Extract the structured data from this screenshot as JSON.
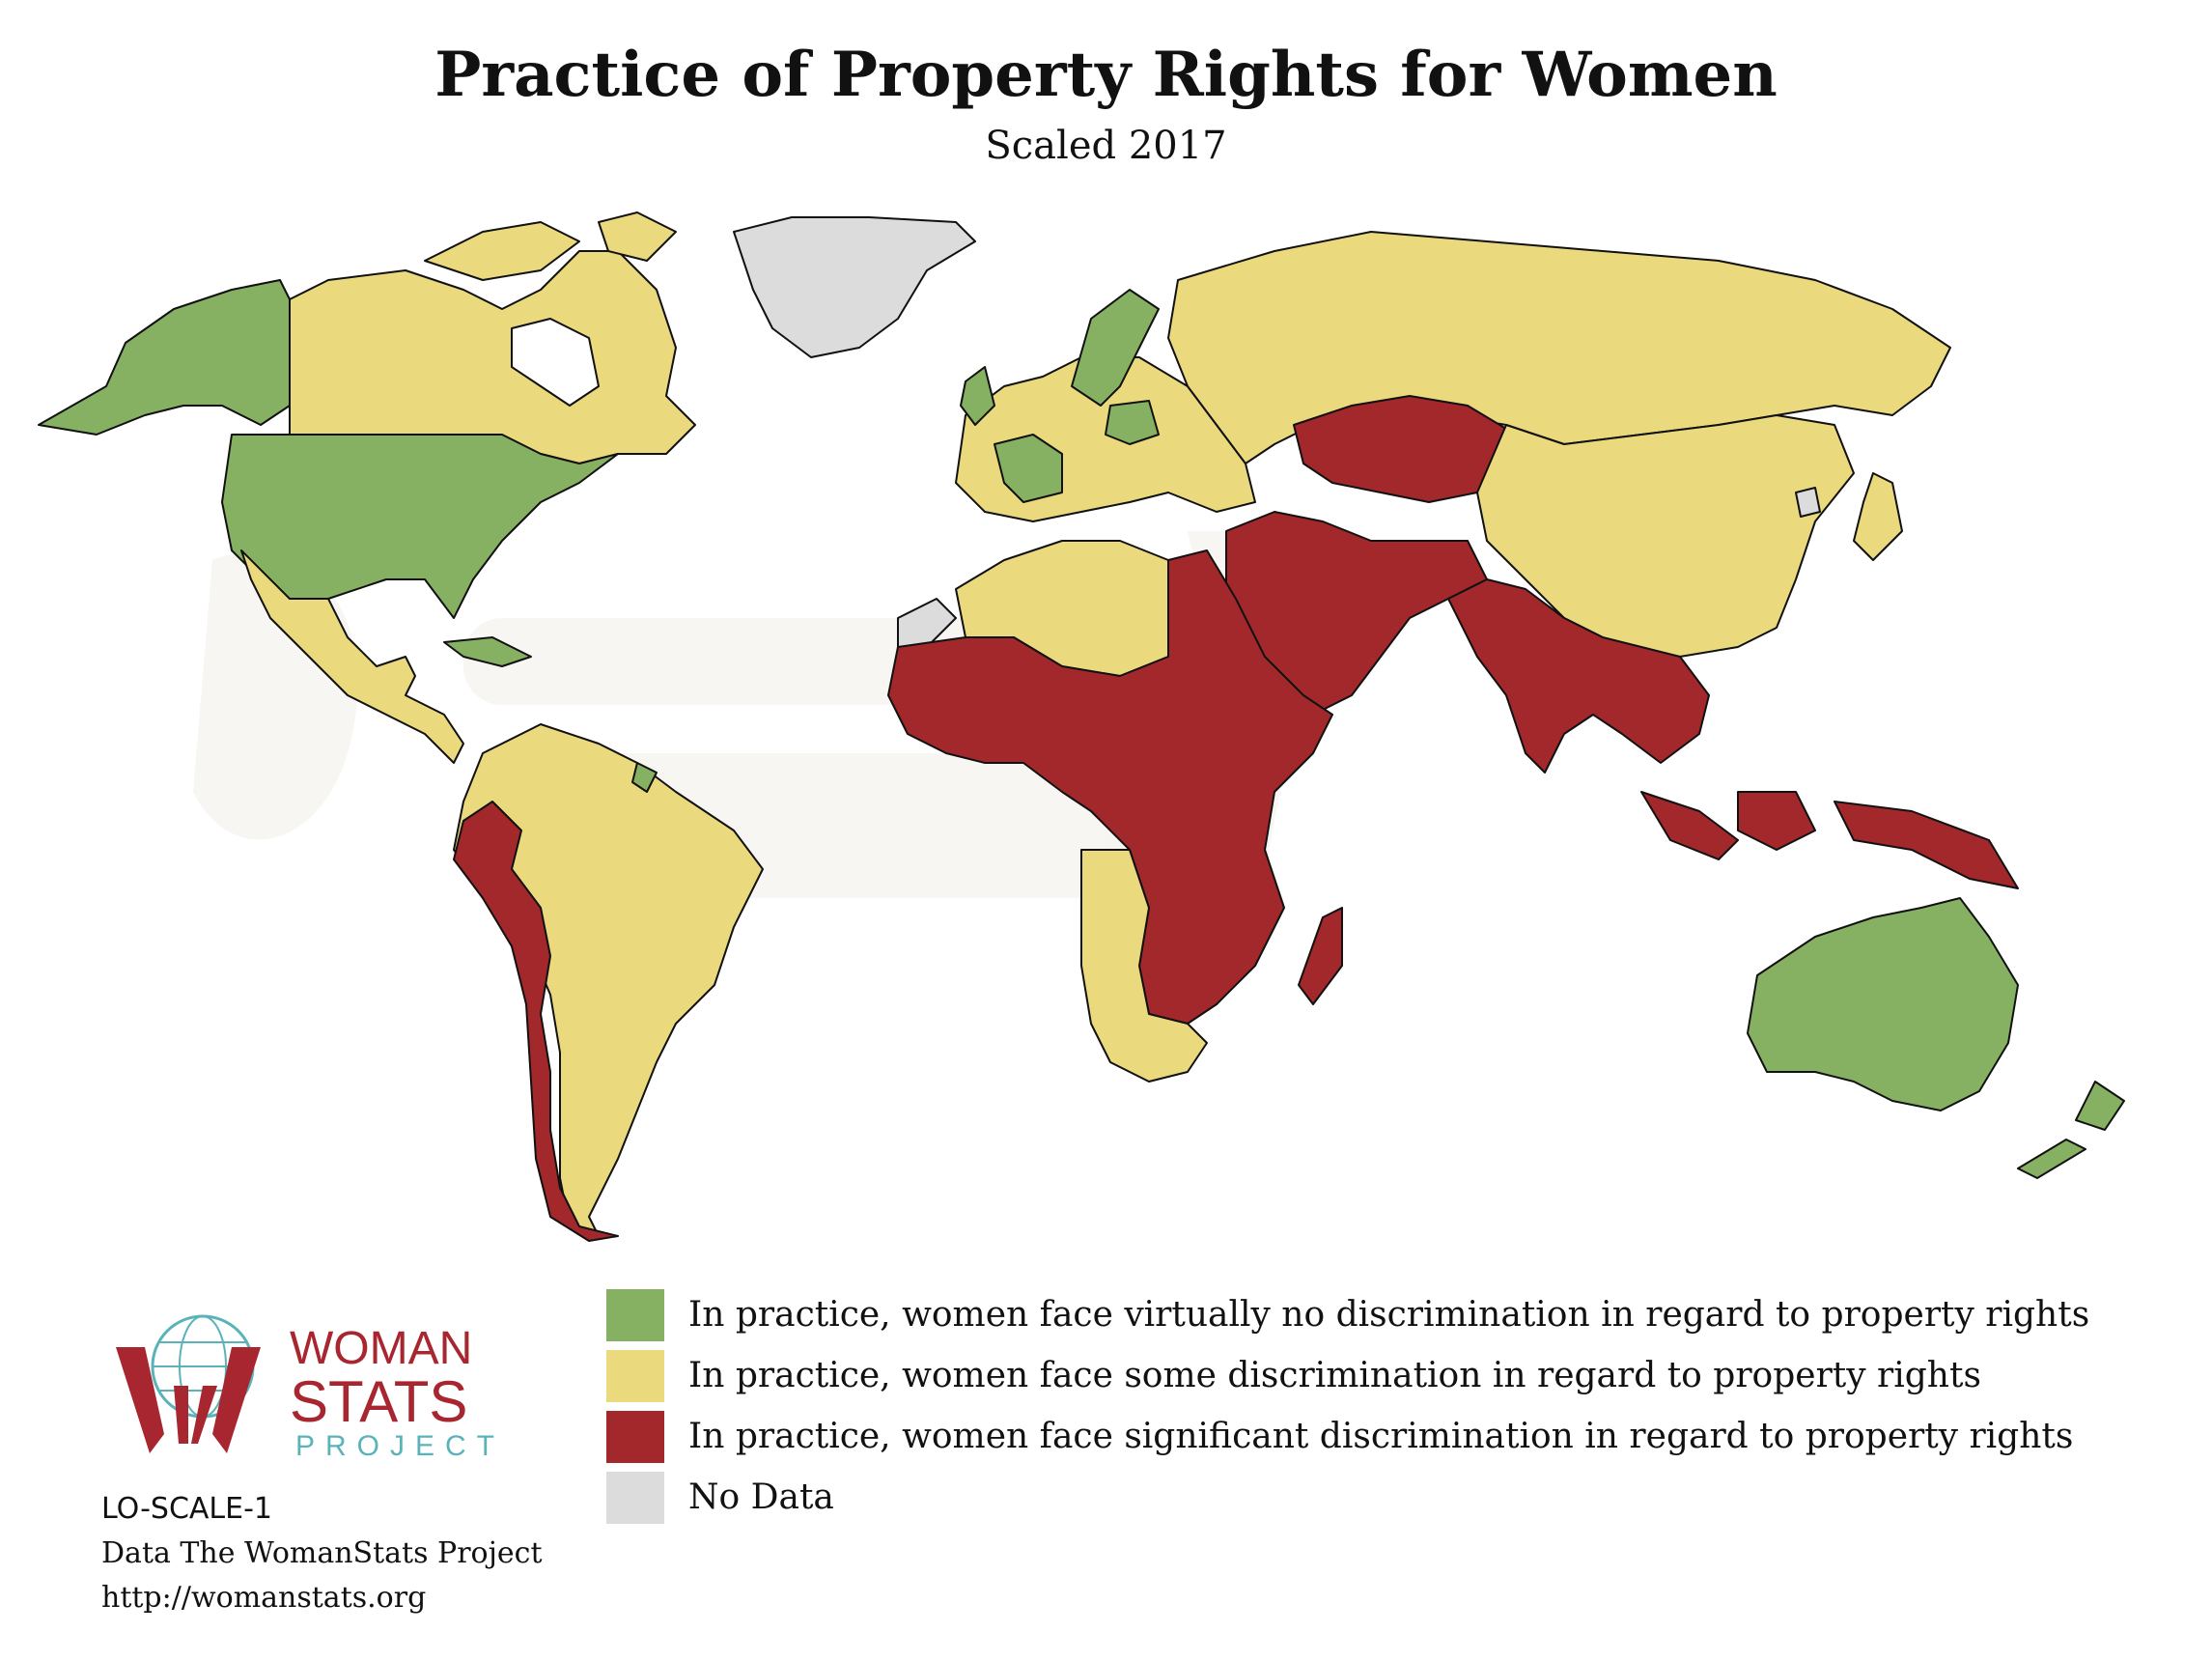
{
  "header": {
    "title": "Practice of Property Rights for Women",
    "subtitle": "Scaled 2017"
  },
  "colors": {
    "green": "#87b162",
    "yellow": "#ebd97e",
    "red": "#a3282b",
    "gray": "#dcdcdc",
    "border": "#111111"
  },
  "legend": {
    "items": [
      {
        "label": "In practice, women face virtually no discrimination in regard to property rights",
        "color": "#87b162"
      },
      {
        "label": "In practice, women face some discrimination in regard to property rights",
        "color": "#ebd97e"
      },
      {
        "label": "In practice, women face significant discrimination in regard to property rights",
        "color": "#a3282b"
      },
      {
        "label": "No Data",
        "color": "#dcdcdc"
      }
    ]
  },
  "logo": {
    "line1": "WOMAN",
    "line2": "STATS",
    "line3": "PROJECT"
  },
  "credits": {
    "code": "LO-SCALE-1",
    "source": "Data The WomanStats Project",
    "url": "http://womanstats.org"
  }
}
